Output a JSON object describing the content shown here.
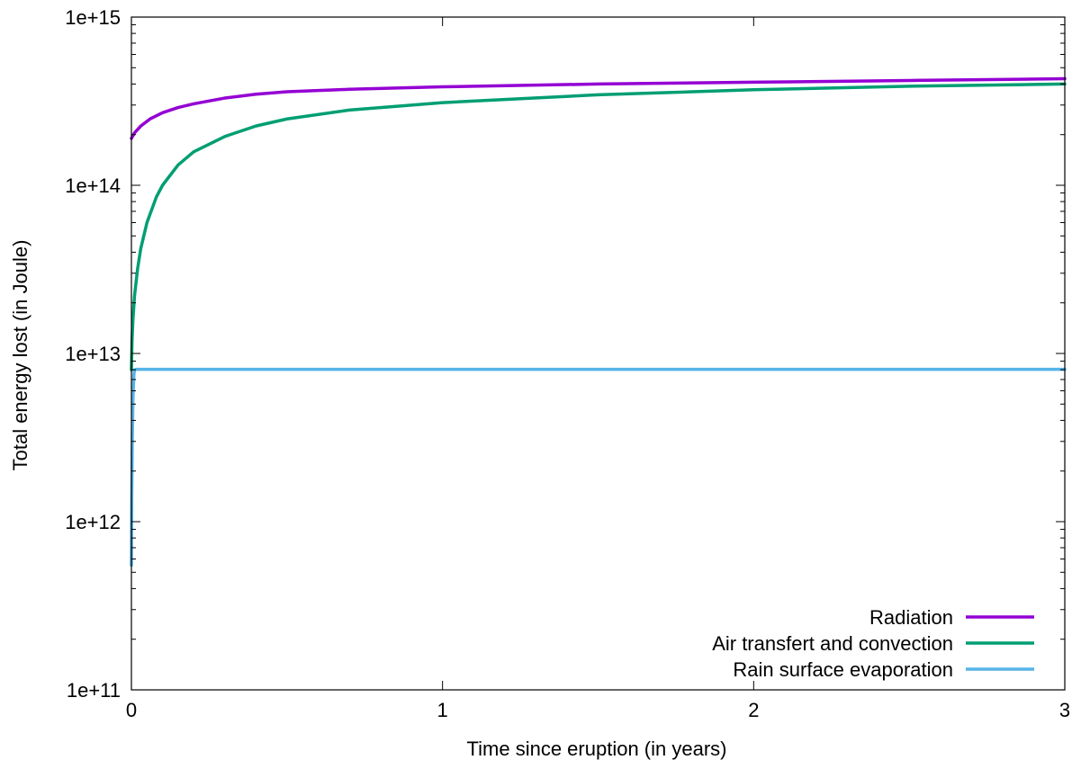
{
  "chart_data": {
    "type": "line",
    "title": "",
    "xlabel": "Time since eruption (in years)",
    "ylabel": "Total energy lost (in Joule)",
    "xlim": [
      0,
      3
    ],
    "ylim": [
      100000000000.0,
      1000000000000000.0
    ],
    "yscale": "log",
    "grid": false,
    "legend_position": "bottom-right",
    "x_ticks": [
      {
        "value": 0,
        "label": "0"
      },
      {
        "value": 1,
        "label": "1"
      },
      {
        "value": 2,
        "label": "2"
      },
      {
        "value": 3,
        "label": "3"
      }
    ],
    "y_ticks": [
      {
        "value": 100000000000.0,
        "label": "1e+11"
      },
      {
        "value": 1000000000000.0,
        "label": "1e+12"
      },
      {
        "value": 10000000000000.0,
        "label": "1e+13"
      },
      {
        "value": 100000000000000.0,
        "label": "1e+14"
      },
      {
        "value": 1000000000000000.0,
        "label": "1e+15"
      }
    ],
    "series": [
      {
        "name": "Radiation",
        "color": "#9400d3",
        "x": [
          0,
          0.01,
          0.03,
          0.06,
          0.1,
          0.15,
          0.2,
          0.3,
          0.4,
          0.5,
          0.7,
          1.0,
          1.5,
          2.0,
          2.5,
          3.0
        ],
        "y": [
          190000000000000.0,
          205000000000000.0,
          225000000000000.0,
          248000000000000.0,
          270000000000000.0,
          290000000000000.0,
          305000000000000.0,
          330000000000000.0,
          348000000000000.0,
          360000000000000.0,
          372000000000000.0,
          385000000000000.0,
          400000000000000.0,
          410000000000000.0,
          420000000000000.0,
          430000000000000.0
        ]
      },
      {
        "name": "Air transfert and convection",
        "color": "#009e73",
        "x": [
          0,
          0.002,
          0.005,
          0.01,
          0.02,
          0.03,
          0.05,
          0.08,
          0.1,
          0.15,
          0.2,
          0.3,
          0.4,
          0.5,
          0.7,
          1.0,
          1.5,
          2.0,
          2.5,
          3.0
        ],
        "y": [
          8000000000000.0,
          12000000000000.0,
          16000000000000.0,
          22000000000000.0,
          32000000000000.0,
          42000000000000.0,
          60000000000000.0,
          85000000000000.0,
          100000000000000.0,
          132000000000000.0,
          158000000000000.0,
          195000000000000.0,
          225000000000000.0,
          248000000000000.0,
          280000000000000.0,
          310000000000000.0,
          345000000000000.0,
          370000000000000.0,
          388000000000000.0,
          400000000000000.0
        ]
      },
      {
        "name": "Rain surface evaporation",
        "color": "#56b4e9",
        "x": [
          0,
          0.001,
          0.003,
          0.005,
          0.008,
          0.01,
          0.015,
          1.0,
          2.0,
          3.0
        ],
        "y": [
          550000000000.0,
          1300000000000.0,
          3200000000000.0,
          5400000000000.0,
          7500000000000.0,
          8000000000000.0,
          8050000000000.0,
          8050000000000.0,
          8050000000000.0,
          8050000000000.0
        ]
      }
    ]
  }
}
